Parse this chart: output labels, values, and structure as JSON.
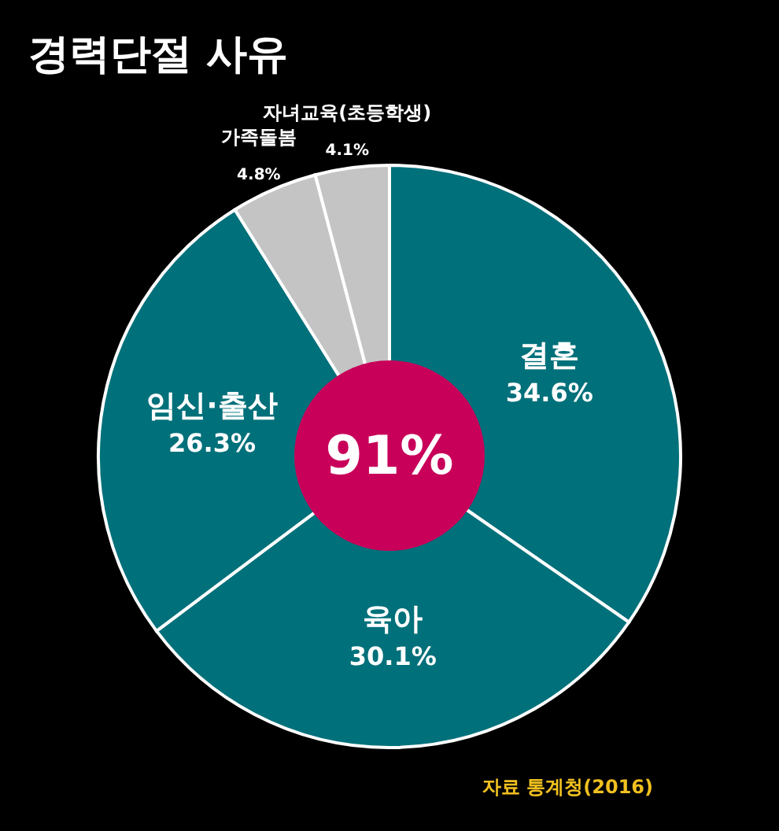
{
  "chart_data": {
    "type": "donut",
    "title": "경력단절 사유",
    "categories": [
      "결혼",
      "육아",
      "임신·출산",
      "가족돌봄",
      "자녀교육(초등학생)"
    ],
    "values": [
      34.6,
      30.1,
      26.3,
      4.8,
      4.1
    ],
    "value_labels": [
      "34.6%",
      "30.1%",
      "26.3%",
      "4.8%",
      "4.1%"
    ],
    "colors": [
      "#00707a",
      "#00707a",
      "#00707a",
      "#c4c4c4",
      "#c4c4c4"
    ],
    "annotations": [
      "91%",
      "자료 통계청(2016)"
    ],
    "legend": false
  }
}
